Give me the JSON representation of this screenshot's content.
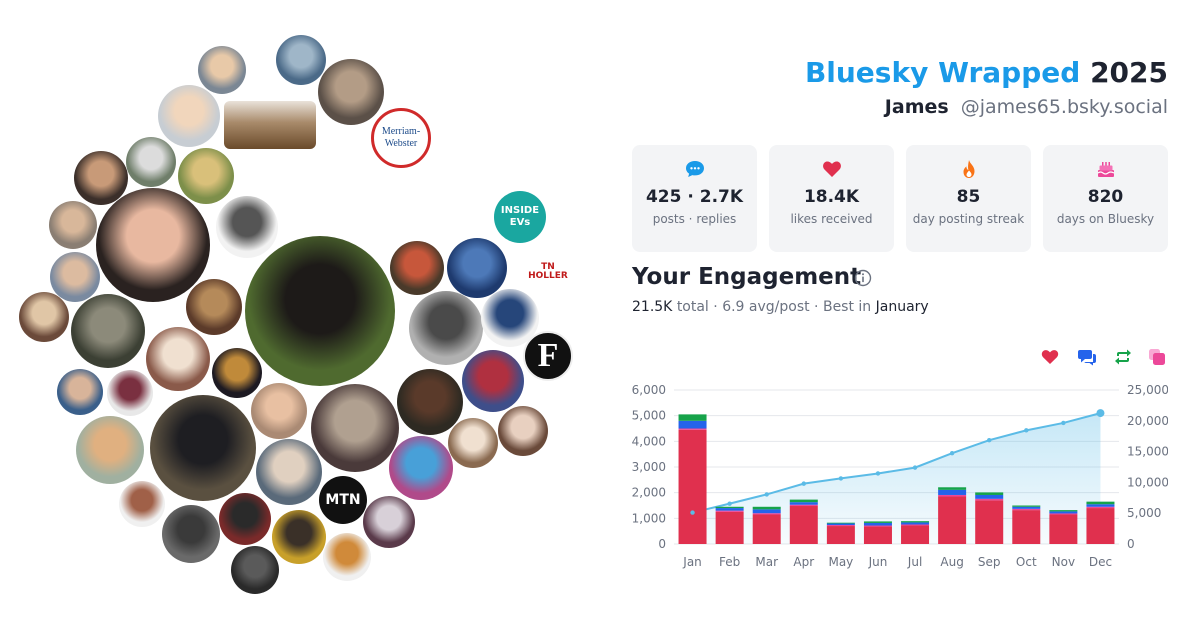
{
  "header": {
    "brand": "Bluesky Wrapped",
    "year": "2025",
    "display_name": "James",
    "handle": "@james65.bsky.social"
  },
  "stats": [
    {
      "icon": "speech-bubble-icon",
      "color": "#1a9ae8",
      "value": "425 · 2.7K",
      "label": "posts · replies"
    },
    {
      "icon": "heart-icon",
      "color": "#e0304e",
      "value": "18.4K",
      "label": "likes received"
    },
    {
      "icon": "flame-icon",
      "color": "#f97316",
      "value": "85",
      "label": "day posting streak"
    },
    {
      "icon": "cake-icon",
      "color": "#ec4899",
      "value": "820",
      "label": "days on Bluesky"
    }
  ],
  "engagement": {
    "title": "Your Engagement",
    "total_value": "21.5K",
    "total_word": "total",
    "avg": "6.9 avg/post",
    "best_prefix": "Best in",
    "best_month": "January"
  },
  "legend": [
    {
      "icon": "heart-icon",
      "color": "#e0304e"
    },
    {
      "icon": "reply-icon",
      "color": "#2563eb"
    },
    {
      "icon": "repost-icon",
      "color": "#16a34a"
    },
    {
      "icon": "quote-icon",
      "color": "#ec4899"
    }
  ],
  "avatars": {
    "badges": [
      {
        "name": "merriam-webster-logo",
        "line1": "Merriam-",
        "line2": "Webster"
      },
      {
        "name": "inside-evs-logo",
        "line1": "INSIDE",
        "line2": "EVs"
      },
      {
        "name": "tn-holler-logo",
        "line1": "TN HOLLER",
        "line2": ""
      },
      {
        "name": "forbes-logo",
        "line1": "F",
        "line2": ""
      },
      {
        "name": "mtn-logo",
        "line1": "MTN",
        "line2": ""
      }
    ]
  },
  "chart_data": {
    "type": "bar",
    "categories": [
      "Jan",
      "Feb",
      "Mar",
      "Apr",
      "May",
      "Jun",
      "Jul",
      "Aug",
      "Sep",
      "Oct",
      "Nov",
      "Dec"
    ],
    "series": [
      {
        "color": "#e0304e",
        "values": [
          4450,
          1250,
          1150,
          1480,
          700,
          680,
          720,
          1850,
          1700,
          1320,
          1150,
          1400
        ]
      },
      {
        "color": "#ec4899",
        "values": [
          50,
          50,
          50,
          50,
          40,
          40,
          40,
          60,
          60,
          50,
          40,
          50
        ]
      },
      {
        "color": "#2563eb",
        "values": [
          300,
          100,
          150,
          100,
          60,
          100,
          80,
          200,
          150,
          80,
          80,
          100
        ]
      },
      {
        "color": "#16a34a",
        "values": [
          250,
          50,
          100,
          100,
          30,
          60,
          50,
          100,
          100,
          50,
          50,
          100
        ]
      },
      {
        "color": "#5bbbe6",
        "axis": "right",
        "type": "area",
        "values": [
          5100,
          6550,
          8050,
          9800,
          10650,
          11450,
          12400,
          14750,
          16850,
          18450,
          19650,
          21250
        ]
      }
    ],
    "ylim": [
      0,
      6000
    ],
    "y2lim": [
      0,
      25000
    ],
    "yticks": [
      "0",
      "1,000",
      "2,000",
      "3,000",
      "4,000",
      "5,000",
      "6,000"
    ],
    "y2ticks": [
      "0",
      "5,000",
      "10,000",
      "15,000",
      "20,000",
      "25,000"
    ],
    "grid": true
  }
}
